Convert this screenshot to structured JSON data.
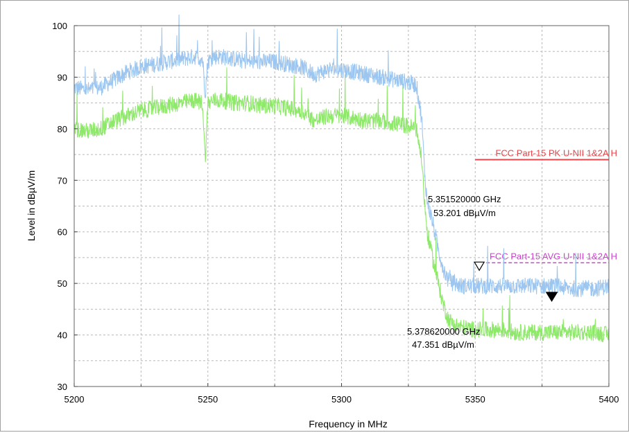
{
  "chart_data": {
    "type": "line",
    "xlabel": "Frequency in MHz",
    "ylabel": "Level in dBµV/m",
    "xlim": [
      5200,
      5400
    ],
    "ylim": [
      30,
      100
    ],
    "x_ticks": [
      "5200",
      "5250",
      "5300",
      "5350",
      "5400"
    ],
    "y_ticks": [
      "30",
      "40",
      "50",
      "60",
      "70",
      "80",
      "90",
      "100"
    ],
    "grid": true,
    "series": [
      {
        "color": "#9cc6f0",
        "x": [
          5200,
          5205,
          5210,
          5215,
          5220,
          5225,
          5230,
          5235,
          5240,
          5245,
          5248,
          5249,
          5250,
          5252,
          5255,
          5260,
          5265,
          5270,
          5275,
          5280,
          5285,
          5290,
          5295,
          5300,
          5305,
          5310,
          5315,
          5320,
          5325,
          5328,
          5330,
          5331,
          5332,
          5334,
          5336,
          5338,
          5340,
          5342,
          5345,
          5350,
          5355,
          5360,
          5365,
          5370,
          5375,
          5380,
          5385,
          5390,
          5395,
          5400
        ],
        "y": [
          88,
          87.5,
          88,
          89.5,
          91,
          92,
          92.5,
          93,
          93.5,
          94,
          93.5,
          87,
          93,
          94,
          94,
          93.5,
          93,
          93,
          93,
          92.5,
          92,
          90.5,
          91.5,
          91.5,
          91,
          90.5,
          90,
          89.5,
          89,
          88.5,
          82,
          72,
          66,
          62,
          57,
          53,
          50.5,
          50,
          49.5,
          49.5,
          49.5,
          49.5,
          49.5,
          49.5,
          49.5,
          49.5,
          49,
          49,
          49,
          49.5
        ]
      },
      {
        "color": "#8ee86a",
        "x": [
          5200,
          5205,
          5210,
          5215,
          5220,
          5225,
          5230,
          5235,
          5240,
          5245,
          5248,
          5249,
          5250,
          5252,
          5255,
          5260,
          5265,
          5270,
          5275,
          5280,
          5285,
          5290,
          5295,
          5300,
          5305,
          5310,
          5315,
          5320,
          5325,
          5328,
          5330,
          5331,
          5332,
          5334,
          5336,
          5338,
          5340,
          5342,
          5345,
          5350,
          5355,
          5360,
          5365,
          5370,
          5375,
          5380,
          5385,
          5390,
          5395,
          5400
        ],
        "y": [
          80,
          79.5,
          80,
          81.5,
          82.5,
          83.5,
          84,
          84.5,
          85,
          85.5,
          85,
          74,
          85,
          85.5,
          85.5,
          85,
          85,
          84.5,
          84.5,
          84,
          83.5,
          81.5,
          82.5,
          82.5,
          82,
          81.5,
          81.5,
          81,
          80.5,
          80,
          74,
          66,
          60,
          55,
          50.5,
          46,
          43,
          42,
          41.5,
          41,
          41,
          41,
          40.5,
          40.5,
          40.5,
          40.5,
          40.5,
          40.5,
          40.5,
          40
        ]
      }
    ],
    "limit_lines": [
      {
        "label": "FCC Part-15  PK  U-NII 1&2A  H",
        "value": 74,
        "x_start": 5350,
        "x_end": 5400,
        "color": "#e8454a",
        "dashed": false
      },
      {
        "label": "FCC Part-15  AVG  U-NII 1&2A  H",
        "value": 54,
        "x_start": 5350,
        "x_end": 5400,
        "color": "#cc44cc",
        "dashed": true
      }
    ],
    "markers": [
      {
        "freq": "5.351520000 GHz",
        "level": "53.201 dBµV/m",
        "x": 5351.52,
        "y": 53.201,
        "filled": false
      },
      {
        "freq": "5.378620000 GHz",
        "level": "47.351 dBµV/m",
        "x": 5378.62,
        "y": 47.351,
        "filled": true
      }
    ]
  }
}
